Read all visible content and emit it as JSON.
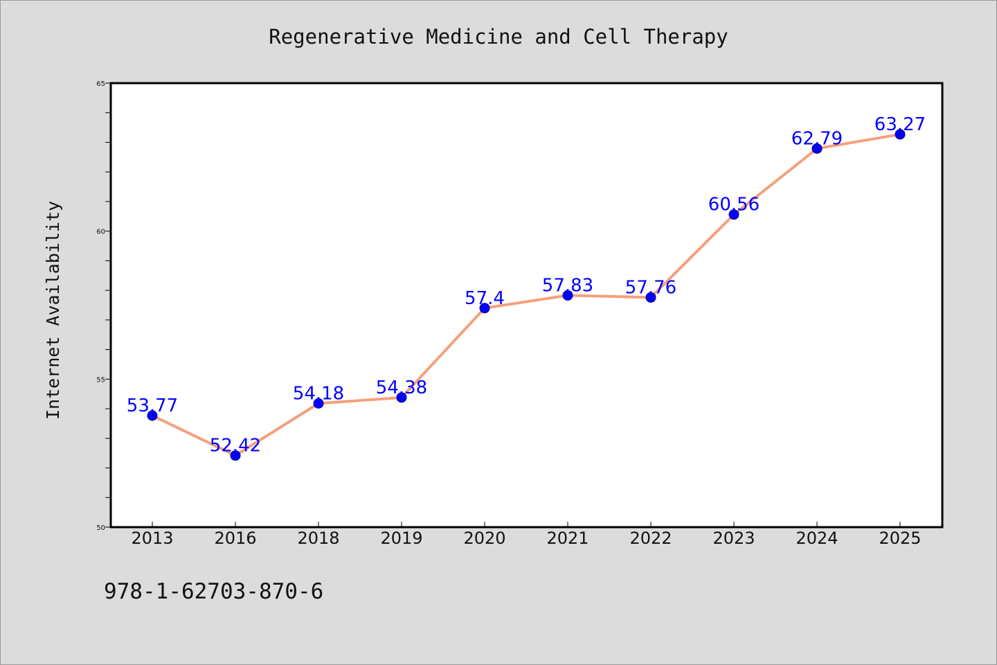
{
  "chart_data": {
    "type": "line",
    "title": "Regenerative Medicine and Cell Therapy",
    "xlabel": "",
    "ylabel": "Internet Availability",
    "categories": [
      "2013",
      "2016",
      "2018",
      "2019",
      "2020",
      "2021",
      "2022",
      "2023",
      "2024",
      "2025"
    ],
    "values": [
      53.77,
      52.42,
      54.18,
      54.38,
      57.4,
      57.83,
      57.76,
      60.56,
      62.79,
      63.27
    ],
    "data_labels": [
      "53.77",
      "52.42",
      "54.18",
      "54.38",
      "57.4",
      "57.83",
      "57.76",
      "60.56",
      "62.79",
      "63.27"
    ],
    "ylim": [
      50,
      65
    ],
    "yticks": [
      "50",
      "55",
      "60",
      "65"
    ],
    "ytick_values": [
      50,
      55,
      60,
      65
    ],
    "y_minor_step": 1,
    "grid": false,
    "legend": "none",
    "colors": {
      "line": "#f4a07c",
      "marker": "#0000ff",
      "data_label": "#0000ff",
      "background": "#dcdcdc",
      "plot_background": "#ffffff"
    }
  },
  "footer": {
    "isbn": "978-1-62703-870-6"
  }
}
